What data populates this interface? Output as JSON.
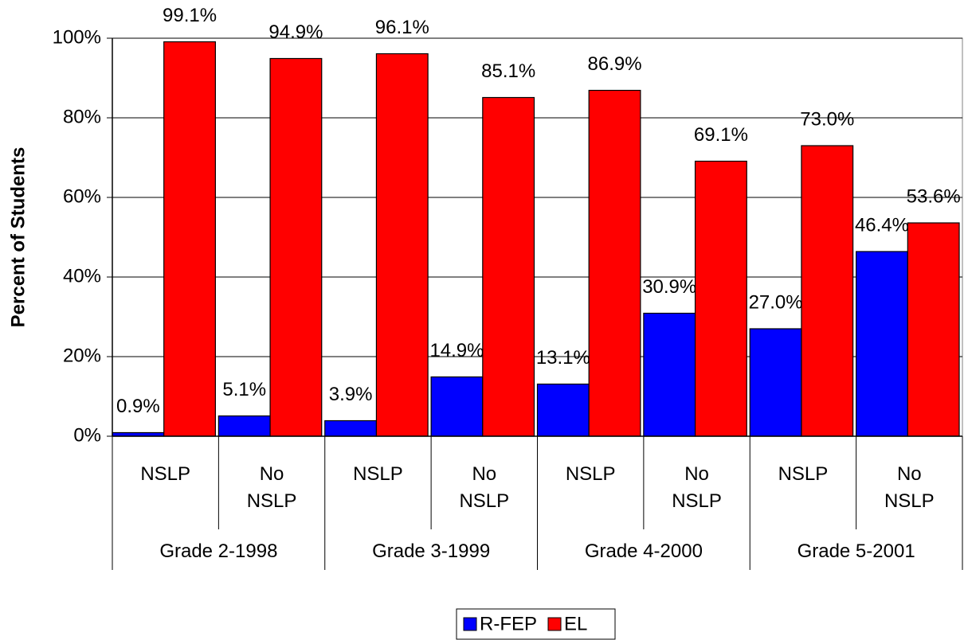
{
  "chart_data": {
    "type": "bar",
    "y_label": "Percent of Students",
    "categories": [
      "NSLP",
      "No NSLP",
      "NSLP",
      "No NSLP",
      "NSLP",
      "No NSLP",
      "NSLP",
      "No NSLP"
    ],
    "groups": [
      "Grade 2-1998",
      "Grade 3-1999",
      "Grade 4-2000",
      "Grade 5-2001"
    ],
    "series": [
      {
        "name": "R-FEP",
        "color": "#0000ff",
        "values": [
          0.9,
          5.1,
          3.9,
          14.9,
          13.1,
          30.9,
          27.0,
          46.4
        ],
        "value_labels": [
          "0.9%",
          "5.1%",
          "3.9%",
          "14.9%",
          "13.1%",
          "30.9%",
          "27.0%",
          "46.4%"
        ]
      },
      {
        "name": "EL",
        "color": "#ff0000",
        "values": [
          99.1,
          94.9,
          96.1,
          85.1,
          86.9,
          69.1,
          73.0,
          53.6
        ],
        "value_labels": [
          "99.1%",
          "94.9%",
          "96.1%",
          "85.1%",
          "86.9%",
          "69.1%",
          "73.0%",
          "53.6%"
        ]
      }
    ],
    "ylim": [
      0,
      100
    ],
    "yticks": [
      {
        "value": 0,
        "label": "0%"
      },
      {
        "value": 20,
        "label": "20%"
      },
      {
        "value": 40,
        "label": "40%"
      },
      {
        "value": 60,
        "label": "60%"
      },
      {
        "value": 80,
        "label": "80%"
      },
      {
        "value": 100,
        "label": "100%"
      }
    ],
    "grid": true,
    "legend": "bottom"
  }
}
